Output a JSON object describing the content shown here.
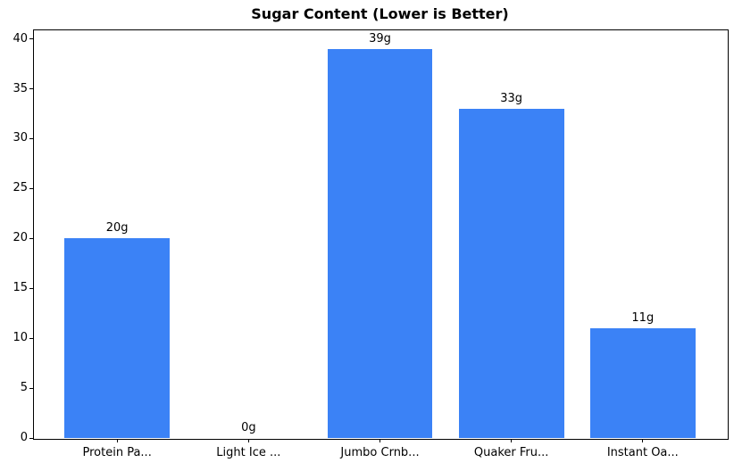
{
  "chart_data": {
    "type": "bar",
    "title": "Sugar Content (Lower is Better)",
    "categories": [
      "Protein Pa...",
      "Light Ice ...",
      "Jumbo Crnb...",
      "Quaker Fru...",
      "Instant Oa..."
    ],
    "values": [
      20,
      0,
      39,
      33,
      11
    ],
    "bar_labels": [
      "20g",
      "0g",
      "39g",
      "33g",
      "11g"
    ],
    "bar_color": "#3b82f6",
    "xlabel": "",
    "ylabel": "",
    "y_ticks": [
      0,
      5,
      10,
      15,
      20,
      25,
      30,
      35,
      40
    ],
    "ylim": [
      0,
      40.95
    ],
    "xlim": [
      -0.64,
      4.64
    ],
    "bar_width_units": 0.8,
    "grid": false,
    "legend": null
  }
}
